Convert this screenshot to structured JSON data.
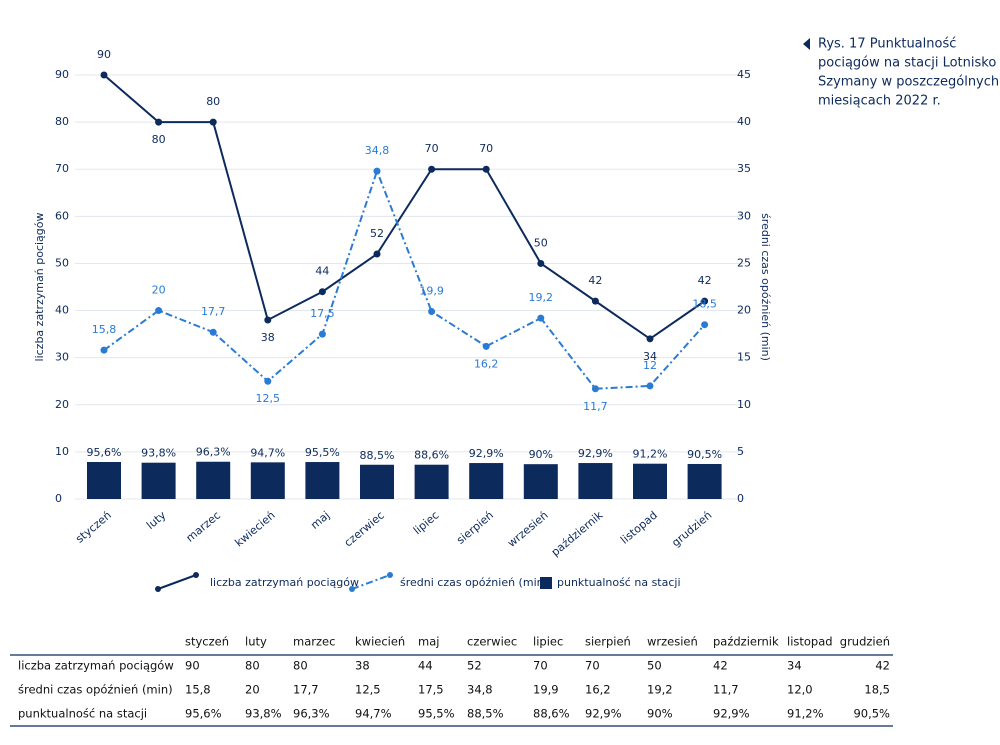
{
  "chart_data": {
    "type": "line",
    "title": [
      "Rys. 17   Punktualność",
      "pociągów na stacji Lotnisko",
      "Szymany w poszczególnych",
      "miesiącach 2022 r."
    ],
    "ylabel": "liczba zatrzymań pociągów",
    "y2label": "średni czas opóźnień (min)",
    "categories": [
      "styczeń",
      "luty",
      "marzec",
      "kwiecień",
      "maj",
      "czerwiec",
      "lipiec",
      "sierpień",
      "wrzesień",
      "październik",
      "listopad",
      "grudzień"
    ],
    "ylim": [
      0,
      90
    ],
    "yticks": [
      0,
      10,
      20,
      30,
      40,
      50,
      60,
      70,
      80,
      90
    ],
    "y2lim": [
      0,
      45
    ],
    "y2ticks": [
      0,
      5,
      10,
      15,
      20,
      25,
      30,
      35,
      40,
      45
    ],
    "grid": true,
    "series": [
      {
        "name": "liczba zatrzymań pociągów",
        "type": "line",
        "color": "#0d2a5c",
        "values": [
          90,
          80,
          80,
          38,
          44,
          52,
          70,
          70,
          50,
          42,
          34,
          42
        ]
      },
      {
        "name": "średni czas opóźnień (min)",
        "type": "line",
        "axis": "y2",
        "color": "#2a7bd4",
        "dash": "dash-dot",
        "values": [
          15.8,
          20,
          17.7,
          12.5,
          17.5,
          34.8,
          19.9,
          16.2,
          19.2,
          11.7,
          12,
          18.5
        ],
        "value_labels": [
          "15,8",
          "20",
          "17,7",
          "12,5",
          "17,5",
          "34,8",
          "19,9",
          "16,2",
          "19,2",
          "11,7",
          "12",
          "18,5"
        ]
      },
      {
        "name": "punktualność na stacji",
        "type": "bar",
        "color": "#0d2a5c",
        "values": [
          95.6,
          93.8,
          96.3,
          94.7,
          95.5,
          88.5,
          88.6,
          92.9,
          90,
          92.9,
          91.2,
          90.5
        ],
        "value_labels": [
          "95,6%",
          "93,8%",
          "96,3%",
          "94,7%",
          "95,5%",
          "88,5%",
          "88,6%",
          "92,9%",
          "90%",
          "92,9%",
          "91,2%",
          "90,5%"
        ]
      }
    ]
  },
  "table": {
    "header": [
      "styczeń",
      "luty",
      "marzec",
      "kwiecień",
      "maj",
      "czerwiec",
      "lipiec",
      "sierpień",
      "wrzesień",
      "październik",
      "listopad",
      "grudzień"
    ],
    "rows": [
      {
        "label": "liczba zatrzymań pociągów",
        "cells": [
          "90",
          "80",
          "80",
          "38",
          "44",
          "52",
          "70",
          "70",
          "50",
          "42",
          "34",
          "42"
        ]
      },
      {
        "label": "średni czas opóźnień (min)",
        "cells": [
          "15,8",
          "20",
          "17,7",
          "12,5",
          "17,5",
          "34,8",
          "19,9",
          "16,2",
          "19,2",
          "11,7",
          "12,0",
          "18,5"
        ]
      },
      {
        "label": "punktualność na stacji",
        "cells": [
          "95,6%",
          "93,8%",
          "96,3%",
          "94,7%",
          "95,5%",
          "88,5%",
          "88,6%",
          "92,9%",
          "90%",
          "92,9%",
          "91,2%",
          "90,5%"
        ]
      }
    ]
  }
}
